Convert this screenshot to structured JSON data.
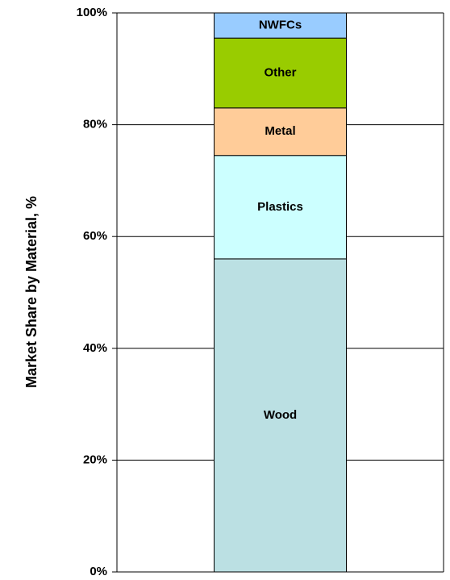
{
  "chart_data": {
    "type": "stacked_bar",
    "y_label": "Market Share by Material, %",
    "categories": [
      null
    ],
    "series": [
      {
        "name": "Wood",
        "color": "#bbe0e3",
        "values": [
          56
        ]
      },
      {
        "name": "Plastics",
        "color": "#ccffff",
        "values": [
          18.5
        ]
      },
      {
        "name": "Metal",
        "color": "#ffcc99",
        "values": [
          8.5
        ]
      },
      {
        "name": "Other",
        "color": "#99cc00",
        "values": [
          12.5
        ]
      },
      {
        "name": "NWFCs",
        "color": "#99ccff",
        "values": [
          4.5
        ]
      }
    ],
    "ylim": [
      0,
      100
    ],
    "yticks": [
      {
        "value": 0,
        "label": "0%"
      },
      {
        "value": 20,
        "label": "20%"
      },
      {
        "value": 40,
        "label": "40%"
      },
      {
        "value": 60,
        "label": "60%"
      },
      {
        "value": 80,
        "label": "80%"
      },
      {
        "value": 100,
        "label": "100%"
      }
    ],
    "grid": true
  }
}
